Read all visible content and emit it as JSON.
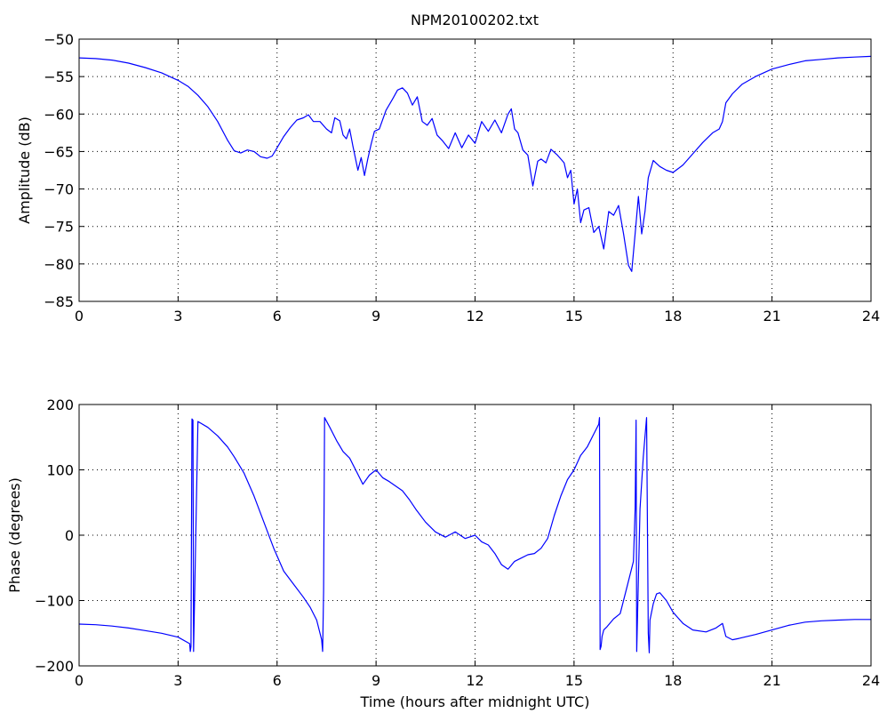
{
  "figure_title": "NPM20100202.txt",
  "colors": {
    "series": "#0000ff",
    "axes": "#000000",
    "background": "#ffffff"
  },
  "chart_data": [
    {
      "type": "line",
      "title": "NPM20100202.txt",
      "xlabel": "",
      "ylabel": "Amplitude (dB)",
      "xlim": [
        0,
        24
      ],
      "ylim": [
        -85,
        -50
      ],
      "xticks": [
        0,
        3,
        6,
        9,
        12,
        15,
        18,
        21,
        24
      ],
      "yticks": [
        -85,
        -80,
        -75,
        -70,
        -65,
        -60,
        -55,
        -50
      ],
      "xtick_labels": [
        "0",
        "3",
        "6",
        "9",
        "12",
        "15",
        "18",
        "21",
        "24"
      ],
      "ytick_labels": [
        "−85",
        "−80",
        "−75",
        "−70",
        "−65",
        "−60",
        "−55",
        "−50"
      ],
      "grid": true,
      "series": [
        {
          "color": "#0000ff",
          "x": [
            0,
            0.5,
            1,
            1.5,
            2,
            2.5,
            3,
            3.3,
            3.6,
            3.9,
            4.2,
            4.5,
            4.7,
            4.9,
            5.1,
            5.3,
            5.5,
            5.7,
            5.85,
            6.0,
            6.2,
            6.4,
            6.6,
            6.8,
            6.95,
            7.1,
            7.3,
            7.5,
            7.65,
            7.75,
            7.9,
            8.0,
            8.1,
            8.2,
            8.3,
            8.45,
            8.55,
            8.65,
            8.75,
            8.85,
            8.95,
            9.1,
            9.3,
            9.5,
            9.65,
            9.8,
            9.95,
            10.1,
            10.25,
            10.4,
            10.55,
            10.7,
            10.85,
            11.0,
            11.2,
            11.4,
            11.6,
            11.8,
            12.0,
            12.2,
            12.4,
            12.6,
            12.8,
            13.0,
            13.1,
            13.2,
            13.3,
            13.45,
            13.6,
            13.75,
            13.9,
            14.0,
            14.15,
            14.3,
            14.5,
            14.7,
            14.8,
            14.9,
            15.0,
            15.1,
            15.2,
            15.3,
            15.45,
            15.6,
            15.75,
            15.9,
            16.05,
            16.2,
            16.35,
            16.5,
            16.65,
            16.75,
            16.85,
            16.95,
            17.05,
            17.15,
            17.25,
            17.4,
            17.6,
            17.8,
            18.0,
            18.3,
            18.6,
            18.9,
            19.2,
            19.4,
            19.5,
            19.6,
            19.8,
            20.1,
            20.5,
            21,
            21.5,
            22,
            22.5,
            23,
            23.5,
            24
          ],
          "values": [
            -52.5,
            -52.6,
            -52.8,
            -53.2,
            -53.8,
            -54.5,
            -55.5,
            -56.3,
            -57.5,
            -59.0,
            -61.0,
            -63.5,
            -64.9,
            -65.2,
            -64.8,
            -65.0,
            -65.7,
            -65.9,
            -65.6,
            -64.5,
            -63.0,
            -61.8,
            -60.8,
            -60.5,
            -60.1,
            -61.0,
            -61.0,
            -62.0,
            -62.5,
            -60.5,
            -60.9,
            -62.8,
            -63.3,
            -62.0,
            -64.3,
            -67.5,
            -65.8,
            -68.2,
            -66.0,
            -64.0,
            -62.3,
            -62.0,
            -59.5,
            -58.0,
            -56.8,
            -56.5,
            -57.2,
            -58.8,
            -57.7,
            -61.0,
            -61.5,
            -60.6,
            -62.8,
            -63.5,
            -64.6,
            -62.5,
            -64.5,
            -62.8,
            -63.9,
            -61.0,
            -62.3,
            -60.8,
            -62.5,
            -60.0,
            -59.3,
            -62.0,
            -62.5,
            -64.8,
            -65.5,
            -69.6,
            -66.3,
            -66.0,
            -66.5,
            -64.7,
            -65.5,
            -66.5,
            -68.5,
            -67.5,
            -72.0,
            -70.0,
            -74.5,
            -72.8,
            -72.5,
            -75.8,
            -75.0,
            -78.0,
            -73.0,
            -73.5,
            -72.2,
            -76.0,
            -80.2,
            -81.0,
            -76.0,
            -71.0,
            -76.0,
            -73.0,
            -68.5,
            -66.2,
            -67.0,
            -67.5,
            -67.8,
            -66.8,
            -65.3,
            -63.8,
            -62.5,
            -62.0,
            -61.0,
            -58.5,
            -57.3,
            -56.0,
            -55.0,
            -54.0,
            -53.4,
            -52.9,
            -52.7,
            -52.5,
            -52.4,
            -52.3
          ]
        }
      ]
    },
    {
      "type": "line",
      "title": "",
      "xlabel": "Time (hours after midnight UTC)",
      "ylabel": "Phase (degrees)",
      "xlim": [
        0,
        24
      ],
      "ylim": [
        -200,
        200
      ],
      "xticks": [
        0,
        3,
        6,
        9,
        12,
        15,
        18,
        21,
        24
      ],
      "yticks": [
        -200,
        -100,
        0,
        100,
        200
      ],
      "xtick_labels": [
        "0",
        "3",
        "6",
        "9",
        "12",
        "15",
        "18",
        "21",
        "24"
      ],
      "ytick_labels": [
        "−200",
        "−100",
        "0",
        "100",
        "200"
      ],
      "grid": true,
      "series": [
        {
          "color": "#0000ff",
          "x": [
            0,
            0.5,
            1,
            1.5,
            2,
            2.5,
            3,
            3.35,
            3.37,
            3.39,
            3.42,
            3.45,
            3.47,
            3.6,
            3.9,
            4.2,
            4.5,
            4.7,
            5.0,
            5.3,
            5.6,
            5.9,
            6.2,
            6.5,
            6.8,
            7.0,
            7.2,
            7.35,
            7.38,
            7.41,
            7.44,
            7.6,
            7.8,
            8.0,
            8.2,
            8.4,
            8.6,
            8.8,
            9.0,
            9.2,
            9.4,
            9.6,
            9.8,
            10.0,
            10.2,
            10.5,
            10.8,
            11.1,
            11.4,
            11.7,
            12.0,
            12.2,
            12.4,
            12.6,
            12.8,
            13.0,
            13.2,
            13.4,
            13.6,
            13.8,
            14.0,
            14.2,
            14.4,
            14.6,
            14.8,
            15.0,
            15.2,
            15.4,
            15.6,
            15.75,
            15.77,
            15.79,
            15.82,
            15.85,
            15.9,
            16.0,
            16.2,
            16.4,
            16.6,
            16.8,
            16.85,
            16.88,
            16.9,
            17.0,
            17.1,
            17.2,
            17.25,
            17.28,
            17.3,
            17.4,
            17.5,
            17.6,
            17.8,
            18.0,
            18.3,
            18.6,
            19.0,
            19.3,
            19.5,
            19.6,
            19.8,
            20.0,
            20.5,
            21,
            21.5,
            22,
            22.5,
            23,
            23.5,
            24
          ],
          "values": [
            -136,
            -137,
            -139,
            -142,
            -146,
            -150,
            -156,
            -166,
            -178,
            -170,
            178,
            176,
            -178,
            174,
            165,
            152,
            135,
            120,
            95,
            60,
            20,
            -20,
            -55,
            -75,
            -95,
            -110,
            -130,
            -160,
            -178,
            -85,
            180,
            165,
            145,
            128,
            118,
            98,
            78,
            92,
            100,
            88,
            82,
            75,
            68,
            55,
            40,
            20,
            5,
            -3,
            5,
            -5,
            0,
            -10,
            -15,
            -28,
            -45,
            -52,
            -40,
            -35,
            -30,
            -28,
            -20,
            -5,
            30,
            60,
            85,
            100,
            122,
            135,
            155,
            170,
            180,
            -175,
            -170,
            -155,
            -145,
            -140,
            -128,
            -120,
            -80,
            -40,
            40,
            176,
            -178,
            40,
            120,
            180,
            -150,
            -180,
            -130,
            -105,
            -90,
            -88,
            -100,
            -118,
            -135,
            -145,
            -148,
            -142,
            -135,
            -155,
            -160,
            -158,
            -152,
            -145,
            -138,
            -133,
            -131,
            -130,
            -129,
            -129
          ]
        }
      ]
    }
  ]
}
